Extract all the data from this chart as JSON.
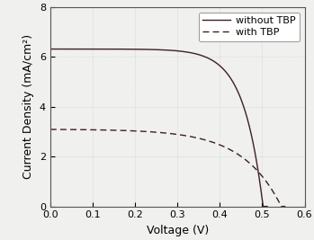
{
  "title": "",
  "xlabel": "Voltage (V)",
  "ylabel": "Current Density (mA/cm²)",
  "xlim": [
    0.0,
    0.6
  ],
  "ylim": [
    0.0,
    8.0
  ],
  "xticks": [
    0.0,
    0.1,
    0.2,
    0.3,
    0.4,
    0.5,
    0.6
  ],
  "yticks": [
    0,
    2,
    4,
    6,
    8
  ],
  "line_color": "#3d2020",
  "legend_labels": [
    "without TBP",
    "with TBP"
  ],
  "without_tbp": {
    "Jsc": 6.32,
    "Voc": 0.502,
    "n": 22
  },
  "with_tbp": {
    "Jsc": 3.1,
    "Voc": 0.545,
    "n": 11
  },
  "figsize": [
    3.49,
    2.67
  ],
  "dpi": 100,
  "font_size": 9,
  "bg_color": "#f0f0ee",
  "grid_color": "#c8c8c8",
  "legend_fontsize": 8
}
